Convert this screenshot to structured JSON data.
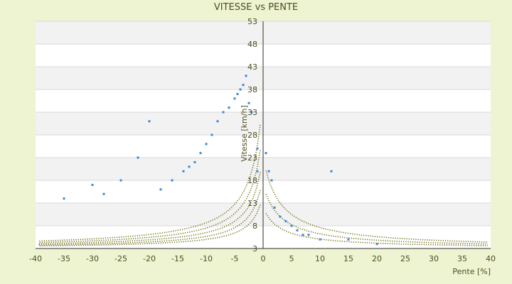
{
  "chart_data": {
    "type": "scatter",
    "title": "VITESSE vs PENTE",
    "xlabel": "Pente [%]",
    "ylabel": "Vitesse [km/h]",
    "xlim": [
      -40,
      40
    ],
    "ylim": [
      3,
      53
    ],
    "x_ticks": [
      -40,
      -35,
      -30,
      -25,
      -20,
      -15,
      -10,
      -5,
      0,
      5,
      10,
      15,
      20,
      25,
      30,
      35,
      40
    ],
    "y_ticks": [
      3,
      8,
      13,
      18,
      23,
      28,
      33,
      38,
      43,
      48,
      53
    ],
    "grid": "horizontal bands",
    "legend": "none",
    "colors": {
      "background": "#eef3d2",
      "plot_light": "#ffffff",
      "plot_band": "#f2f2f2",
      "gridline": "#d9d9d9",
      "scatter": "#3f86d8",
      "curve": "#6f6f18",
      "axis": "#2d2d2d",
      "text": "#4d4d1f"
    },
    "series": [
      {
        "values": [
          {
            "x": -5,
            "y": 36
          },
          {
            "x": -4.5,
            "y": 37
          },
          {
            "x": -4,
            "y": 38
          },
          {
            "x": -3.5,
            "y": 39
          },
          {
            "x": -3,
            "y": 41
          },
          {
            "x": -2.5,
            "y": 35
          },
          {
            "x": -2,
            "y": 33
          },
          {
            "x": -6,
            "y": 34
          },
          {
            "x": -7,
            "y": 33
          },
          {
            "x": -8,
            "y": 31
          },
          {
            "x": -9,
            "y": 28
          },
          {
            "x": -10,
            "y": 26
          },
          {
            "x": -11,
            "y": 24
          },
          {
            "x": -12,
            "y": 22
          },
          {
            "x": -13,
            "y": 21
          },
          {
            "x": -14,
            "y": 20
          },
          {
            "x": -16,
            "y": 18
          },
          {
            "x": -18,
            "y": 16
          },
          {
            "x": -20,
            "y": 31
          },
          {
            "x": -22,
            "y": 23
          },
          {
            "x": -25,
            "y": 18
          },
          {
            "x": -28,
            "y": 15
          },
          {
            "x": -30,
            "y": 17
          },
          {
            "x": -35,
            "y": 14
          },
          {
            "x": -1,
            "y": 25
          },
          {
            "x": -1,
            "y": 20
          },
          {
            "x": 0.5,
            "y": 24
          },
          {
            "x": 1,
            "y": 20
          },
          {
            "x": 1.5,
            "y": 18
          },
          {
            "x": 2,
            "y": 12
          },
          {
            "x": 3,
            "y": 10
          },
          {
            "x": 4,
            "y": 9
          },
          {
            "x": 5,
            "y": 8
          },
          {
            "x": 6,
            "y": 7
          },
          {
            "x": 7,
            "y": 6
          },
          {
            "x": 8,
            "y": 6
          },
          {
            "x": 10,
            "y": 5
          },
          {
            "x": 12,
            "y": 20
          },
          {
            "x": 15,
            "y": 5
          },
          {
            "x": 20,
            "y": 4
          }
        ]
      }
    ],
    "curves": [
      {
        "side": "descent",
        "k": 1.2,
        "s": 2.0
      },
      {
        "side": "descent",
        "k": 1.6,
        "s": 2.0
      },
      {
        "side": "descent",
        "k": 2.1,
        "s": 2.0
      },
      {
        "side": "descent",
        "k": 2.7,
        "s": 2.0
      },
      {
        "side": "descent",
        "k": 3.4,
        "s": 2.0
      },
      {
        "side": "ascent",
        "k": 0.9,
        "s": 3.0
      },
      {
        "side": "ascent",
        "k": 1.4,
        "s": 3.0
      },
      {
        "side": "ascent",
        "k": 2.0,
        "s": 3.0
      }
    ]
  }
}
